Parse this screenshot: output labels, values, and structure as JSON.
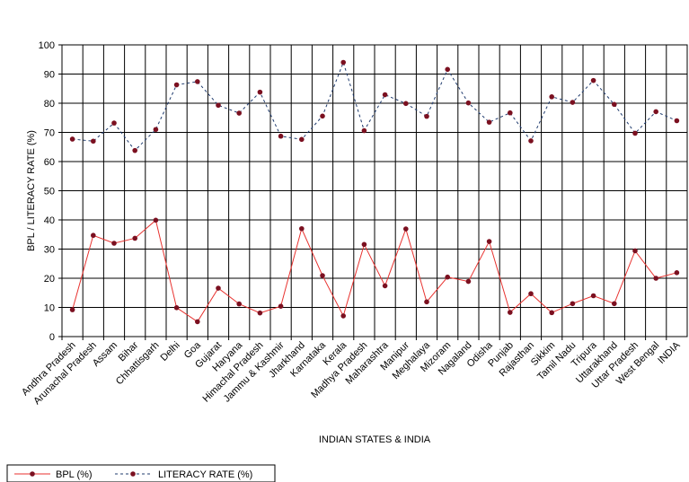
{
  "chart_data": {
    "type": "line",
    "title": "",
    "xlabel": "INDIAN STATES & INDIA",
    "ylabel": "BPL / LITERACY RATE (%)",
    "ylim": [
      0,
      100
    ],
    "yticks": [
      0,
      10,
      20,
      30,
      40,
      50,
      60,
      70,
      80,
      90,
      100
    ],
    "grid": true,
    "legend_position": "bottom-left",
    "categories": [
      "Andhra Pradesh",
      "Arunachal Pradesh",
      "Assam",
      "Bihar",
      "Chhattisgarh",
      "Delhi",
      "Goa",
      "Gujarat",
      "Haryana",
      "Himachal Pradesh",
      "Jammu & Kashmir",
      "Jharkhand",
      "Karnataka",
      "Kerala",
      "Madhya Pradesh",
      "Maharashtra",
      "Manipur",
      "Meghalaya",
      "Mizoram",
      "Nagaland",
      "Odisha",
      "Punjab",
      "Rajasthan",
      "Sikkim",
      "Tamil Nadu",
      "Tripura",
      "Uttarakhand",
      "Uttar Pradesh",
      "West Bengal",
      "INDIA"
    ],
    "series": [
      {
        "name": "BPL (%)",
        "style": "solid",
        "line_color": "#e8322f",
        "marker_color": "#7b1020",
        "values": [
          9.2,
          34.7,
          32.0,
          33.7,
          39.9,
          9.9,
          5.1,
          16.6,
          11.2,
          8.1,
          10.4,
          37.0,
          20.9,
          7.1,
          31.6,
          17.4,
          36.9,
          11.9,
          20.4,
          18.9,
          32.6,
          8.3,
          14.7,
          8.2,
          11.3,
          14.0,
          11.3,
          29.4,
          20.0,
          21.9
        ]
      },
      {
        "name": "LITERACY RATE (%)",
        "style": "dashed",
        "line_color": "#1f3b6e",
        "marker_color": "#7b1020",
        "values": [
          67.7,
          67.0,
          73.2,
          63.8,
          71.0,
          86.3,
          87.4,
          79.3,
          76.6,
          83.8,
          68.7,
          67.6,
          75.6,
          94.0,
          70.6,
          82.9,
          79.9,
          75.5,
          91.6,
          80.1,
          73.5,
          76.7,
          67.1,
          82.2,
          80.3,
          87.8,
          79.6,
          69.7,
          77.1,
          74.0
        ]
      }
    ]
  }
}
